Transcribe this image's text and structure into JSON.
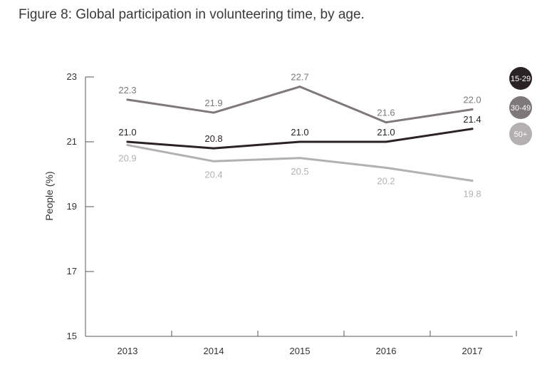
{
  "figure_title": "Figure 8: Global participation in volunteering time, by age.",
  "chart_data": {
    "type": "line",
    "title": "Figure 8: Global participation in volunteering time, by age.",
    "xlabel": "",
    "ylabel": "People (%)",
    "x": [
      "2013",
      "2014",
      "2015",
      "2016",
      "2017"
    ],
    "ylim": [
      15,
      23
    ],
    "yticks": [
      "15",
      "17",
      "19",
      "21",
      "23"
    ],
    "grid": false,
    "legend_position": "right",
    "series": [
      {
        "name": "15-29",
        "color": "#2b2226",
        "values": [
          21.0,
          20.8,
          21.0,
          21.0,
          21.4
        ],
        "labels": [
          "21.0",
          "20.8",
          "21.0",
          "21.0",
          "21.4"
        ],
        "label_position": "above"
      },
      {
        "name": "30-49",
        "color": "#7e787a",
        "values": [
          22.3,
          21.9,
          22.7,
          21.6,
          22.0
        ],
        "labels": [
          "22.3",
          "21.9",
          "22.7",
          "21.6",
          "22.0"
        ],
        "label_position": "above"
      },
      {
        "name": "50+",
        "color": "#b4b0b1",
        "values": [
          20.9,
          20.4,
          20.5,
          20.2,
          19.8
        ],
        "labels": [
          "20.9",
          "20.4",
          "20.5",
          "20.2",
          "19.8"
        ],
        "label_position": "below"
      }
    ]
  }
}
